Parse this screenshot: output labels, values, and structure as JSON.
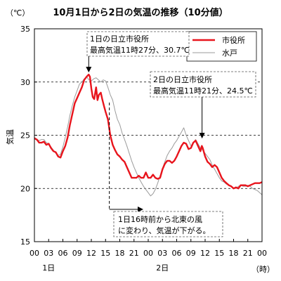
{
  "chart_data": {
    "type": "line",
    "title": "10月1日から2日の気温の推移（10分値）",
    "y_unit": "（℃）",
    "ylabel": "気温",
    "x_unit": "（時）",
    "ylim": [
      15,
      35
    ],
    "yticks": [
      15,
      20,
      25,
      30,
      35
    ],
    "gridlines": [
      20,
      25,
      30
    ],
    "xlim": [
      0,
      48
    ],
    "xticks": [
      0,
      3,
      6,
      9,
      12,
      15,
      18,
      21,
      24,
      27,
      30,
      33,
      36,
      39,
      42,
      45,
      48
    ],
    "xtick_labels": [
      "00",
      "03",
      "06",
      "09",
      "12",
      "15",
      "18",
      "21",
      "00",
      "03",
      "06",
      "09",
      "12",
      "15",
      "18",
      "21",
      "00"
    ],
    "day_labels": [
      {
        "x": 3,
        "label": "1日"
      },
      {
        "x": 27,
        "label": "2日"
      }
    ],
    "legend_position": "top-right",
    "series": [
      {
        "name": "市役所",
        "color": "#e8141c",
        "x": [
          0,
          0.5,
          1,
          1.5,
          2,
          2.5,
          3,
          3.5,
          4,
          4.5,
          5,
          5.5,
          6,
          6.5,
          7,
          7.5,
          8,
          8.5,
          9,
          9.5,
          10,
          10.5,
          11,
          11.45,
          11.7,
          12,
          12.3,
          12.6,
          13,
          13.3,
          13.6,
          14,
          14.3,
          14.7,
          15,
          15.5,
          16,
          16.5,
          17,
          17.5,
          18,
          18.5,
          19,
          19.5,
          20,
          20.5,
          21,
          21.5,
          22,
          22.5,
          23,
          23.5,
          24,
          24.5,
          25,
          25.5,
          26,
          26.5,
          27,
          27.5,
          28,
          28.5,
          29,
          29.5,
          30,
          30.5,
          31,
          31.5,
          32,
          32.5,
          33,
          33.5,
          34,
          34.5,
          35,
          35.3,
          35.5,
          36,
          36.5,
          37,
          37.5,
          38,
          38.5,
          39,
          39.5,
          40,
          40.5,
          41,
          41.5,
          42,
          42.5,
          43,
          43.5,
          44,
          44.5,
          45,
          45.5,
          46,
          46.5,
          47,
          47.5,
          48
        ],
        "values": [
          24.7,
          24.6,
          24.3,
          24.3,
          24.4,
          24.1,
          24.2,
          23.8,
          23.5,
          23.4,
          23.0,
          22.9,
          23.5,
          24.0,
          24.8,
          26.0,
          27.0,
          28.0,
          28.5,
          29.0,
          29.5,
          30.2,
          30.5,
          30.7,
          30.5,
          29.4,
          28.6,
          28.4,
          29.5,
          28.3,
          28.8,
          29.0,
          28.4,
          27.7,
          27.2,
          26.5,
          25.0,
          24.1,
          23.6,
          23.2,
          23.0,
          22.7,
          22.5,
          22.0,
          21.5,
          21.0,
          21.0,
          21.0,
          21.2,
          21.0,
          21.0,
          21.5,
          21.0,
          21.0,
          21.3,
          21.0,
          20.9,
          21.0,
          21.8,
          22.3,
          22.6,
          22.6,
          22.4,
          22.6,
          23.0,
          23.5,
          24.0,
          24.3,
          24.2,
          23.7,
          23.8,
          24.3,
          24.5,
          24.0,
          23.5,
          24.0,
          23.8,
          23.0,
          22.5,
          22.3,
          22.0,
          22.2,
          22.0,
          21.5,
          21.0,
          20.7,
          20.5,
          20.3,
          20.2,
          20.0,
          20.1,
          20.0,
          20.3,
          20.3,
          20.3,
          20.2,
          20.3,
          20.4,
          20.5,
          20.5,
          20.5,
          20.6
        ]
      },
      {
        "name": "水戸",
        "color": "#9b9b9b",
        "x": [
          0,
          0.5,
          1,
          1.5,
          2,
          2.5,
          3,
          3.5,
          4,
          4.5,
          5,
          5.5,
          6,
          6.5,
          7,
          7.5,
          8,
          8.5,
          9,
          9.5,
          10,
          10.5,
          11,
          11.5,
          12,
          12.5,
          13,
          13.5,
          14,
          14.5,
          15,
          15.5,
          16,
          16.5,
          17,
          17.5,
          18,
          18.5,
          19,
          19.5,
          20,
          20.5,
          21,
          21.5,
          22,
          22.5,
          23,
          23.5,
          24,
          24.5,
          25,
          25.5,
          26,
          26.5,
          27,
          27.5,
          28,
          28.5,
          29,
          29.5,
          30,
          30.5,
          31,
          31.5,
          32,
          32.5,
          33,
          33.5,
          34,
          34.5,
          35,
          35.5,
          36,
          36.5,
          37,
          37.5,
          38,
          38.5,
          39,
          39.5,
          40,
          40.5,
          41,
          41.5,
          42,
          42.5,
          43,
          43.5,
          44,
          44.5,
          45,
          45.5,
          46,
          46.5,
          47,
          47.5,
          48
        ],
        "values": [
          24.8,
          24.6,
          24.5,
          24.6,
          24.6,
          24.3,
          24.2,
          23.9,
          23.6,
          23.3,
          23.1,
          23.2,
          23.9,
          24.8,
          25.8,
          26.9,
          27.8,
          28.6,
          29.2,
          29.8,
          30.0,
          30.3,
          30.5,
          30.2,
          30.1,
          30.3,
          30.4,
          30.2,
          30.0,
          30.2,
          30.1,
          29.5,
          28.8,
          28.3,
          27.3,
          26.5,
          26.0,
          25.2,
          24.6,
          24.0,
          23.3,
          22.6,
          22.0,
          21.5,
          21.0,
          20.6,
          20.2,
          19.9,
          19.6,
          19.3,
          19.5,
          19.9,
          20.5,
          21.2,
          21.9,
          22.5,
          23.1,
          23.5,
          23.8,
          24.2,
          24.5,
          24.9,
          25.3,
          25.7,
          25.0,
          24.5,
          24.0,
          24.3,
          24.6,
          24.2,
          23.8,
          23.6,
          23.3,
          23.0,
          22.7,
          22.2,
          21.8,
          21.4,
          21.0,
          20.7,
          20.6,
          20.4,
          20.3,
          20.2,
          20.0,
          20.0,
          20.2,
          20.3,
          20.2,
          20.2,
          20.3,
          20.2,
          20.0,
          19.9,
          19.8,
          19.6,
          19.4
        ]
      }
    ],
    "annotations": [
      {
        "lines": [
          "1日の日立市役所",
          "最高気温11時27分、30.7℃"
        ],
        "point": {
          "x": 11.45,
          "y": 30.7
        }
      },
      {
        "lines": [
          "2日の日立市役所",
          "最高気温11時21分、24.5℃"
        ],
        "point": {
          "x": 35.35,
          "y": 24.5
        }
      },
      {
        "lines": [
          "1日16時前から北東の風",
          "に変わり、気温が下がる。"
        ],
        "point": {
          "x": 15.8,
          "y": 28.6
        }
      }
    ]
  }
}
